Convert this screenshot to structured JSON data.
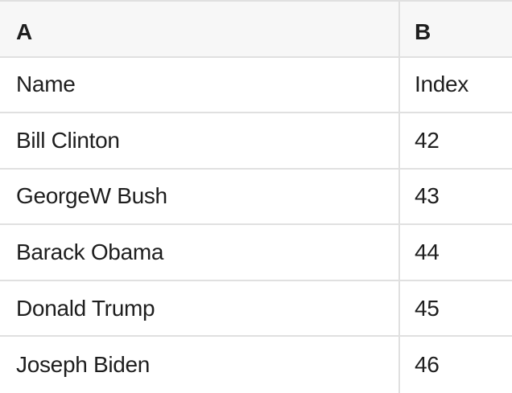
{
  "sheet": {
    "column_headers": [
      "A",
      "B"
    ],
    "rows": [
      [
        "Name",
        "Index"
      ],
      [
        "Bill Clinton",
        "42"
      ],
      [
        "GeorgeW Bush",
        "43"
      ],
      [
        "Barack Obama",
        "44"
      ],
      [
        "Donald Trump",
        "45"
      ],
      [
        "Joseph Biden",
        "46"
      ]
    ]
  },
  "colors": {
    "header_bg": "#f7f7f7",
    "border": "#e0e0e0",
    "text": "#1e1e1e"
  }
}
